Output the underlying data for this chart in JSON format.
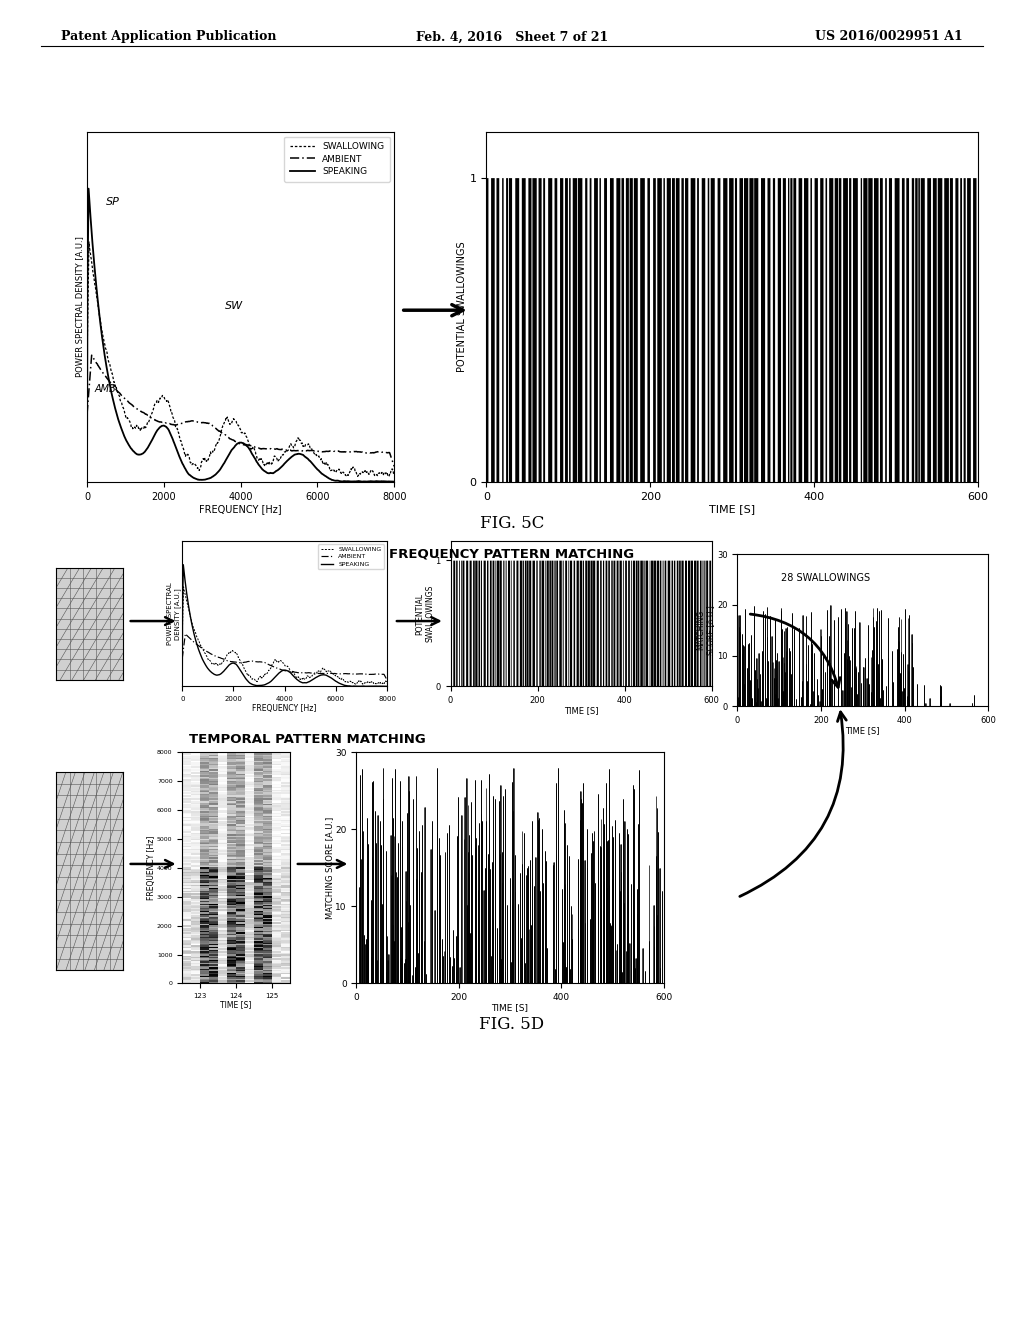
{
  "header_left": "Patent Application Publication",
  "header_mid": "Feb. 4, 2016   Sheet 7 of 21",
  "header_right": "US 2016/0029951 A1",
  "fig5c_label": "FIG. 5C",
  "fig5d_label": "FIG. 5D",
  "freq_pattern_title": "FREQUENCY PATTERN MATCHING",
  "temp_pattern_title": "TEMPORAL PATTERN MATCHING",
  "swallowings_label": "28 SWALLOWINGS",
  "background": "#ffffff",
  "text_color": "#000000"
}
